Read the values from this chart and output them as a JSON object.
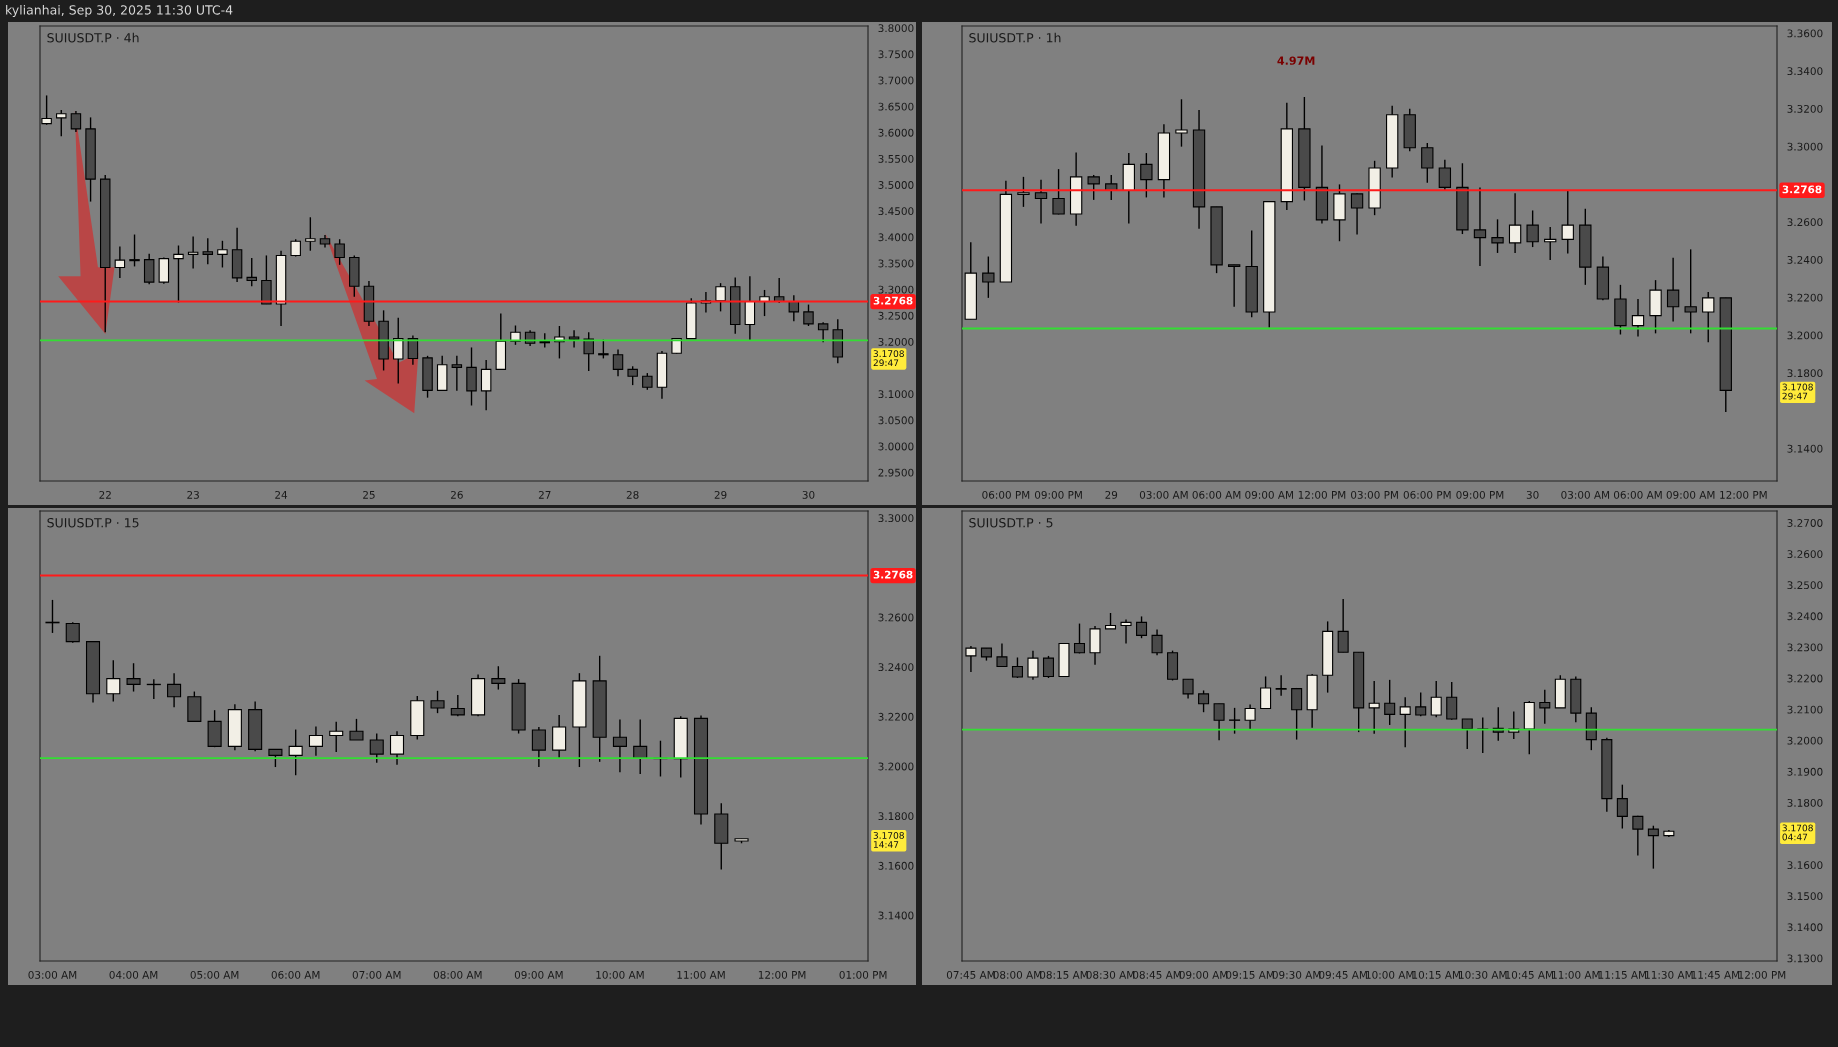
{
  "chart_data": [
    {
      "type": "candlestick",
      "title": "SUIUSDT.P · 4h",
      "subtitle": "kylianhai, Sep 30, 2025 11:30 UTC-4",
      "x": [
        21.3333,
        21.5,
        21.6667,
        21.8333,
        22,
        22.1667,
        22.3333,
        22.5,
        22.6667,
        22.8333,
        23,
        23.1667,
        23.3333,
        23.5,
        23.6667,
        23.8333,
        24,
        24.1667,
        24.3333,
        24.5,
        24.6667,
        24.8333,
        25,
        25.1667,
        25.3333,
        25.5,
        25.6667,
        25.8333,
        26,
        26.1667,
        26.3333,
        26.5,
        26.6667,
        26.8333,
        27,
        27.1667,
        27.3333,
        27.5,
        27.6667,
        27.8333,
        28,
        28.1667,
        28.3333,
        28.5,
        28.6667,
        28.8333,
        29,
        29.1667,
        29.3333,
        29.5,
        29.6667,
        29.8333,
        30,
        30.1667,
        30.3333
      ],
      "ohlc": [
        [
          3.617,
          3.671,
          3.615,
          3.627
        ],
        [
          3.628,
          3.643,
          3.593,
          3.636
        ],
        [
          3.636,
          3.641,
          3.601,
          3.607
        ],
        [
          3.607,
          3.629,
          3.468,
          3.511
        ],
        [
          3.511,
          3.519,
          3.218,
          3.342
        ],
        [
          3.342,
          3.382,
          3.322,
          3.356
        ],
        [
          3.355,
          3.405,
          3.344,
          3.357
        ],
        [
          3.357,
          3.368,
          3.31,
          3.314
        ],
        [
          3.314,
          3.361,
          3.311,
          3.359
        ],
        [
          3.359,
          3.384,
          3.275,
          3.367
        ],
        [
          3.367,
          3.401,
          3.34,
          3.371
        ],
        [
          3.372,
          3.398,
          3.348,
          3.367
        ],
        [
          3.367,
          3.393,
          3.342,
          3.376
        ],
        [
          3.376,
          3.418,
          3.314,
          3.322
        ],
        [
          3.323,
          3.36,
          3.306,
          3.317
        ],
        [
          3.317,
          3.365,
          3.272,
          3.272
        ],
        [
          3.272,
          3.374,
          3.23,
          3.365
        ],
        [
          3.365,
          3.396,
          3.363,
          3.392
        ],
        [
          3.392,
          3.438,
          3.374,
          3.397
        ],
        [
          3.397,
          3.404,
          3.38,
          3.387
        ],
        [
          3.387,
          3.396,
          3.347,
          3.361
        ],
        [
          3.361,
          3.365,
          3.286,
          3.306
        ],
        [
          3.306,
          3.316,
          3.23,
          3.239
        ],
        [
          3.239,
          3.26,
          3.145,
          3.167
        ],
        [
          3.167,
          3.246,
          3.12,
          3.206
        ],
        [
          3.206,
          3.212,
          3.156,
          3.168
        ],
        [
          3.169,
          3.173,
          3.093,
          3.107
        ],
        [
          3.107,
          3.173,
          3.106,
          3.156
        ],
        [
          3.156,
          3.173,
          3.106,
          3.151
        ],
        [
          3.151,
          3.189,
          3.078,
          3.106
        ],
        [
          3.106,
          3.165,
          3.069,
          3.147
        ],
        [
          3.147,
          3.254,
          3.147,
          3.201
        ],
        [
          3.201,
          3.231,
          3.194,
          3.218
        ],
        [
          3.218,
          3.222,
          3.192,
          3.197
        ],
        [
          3.2,
          3.216,
          3.189,
          3.198
        ],
        [
          3.2,
          3.23,
          3.168,
          3.209
        ],
        [
          3.209,
          3.222,
          3.189,
          3.205
        ],
        [
          3.205,
          3.218,
          3.144,
          3.177
        ],
        [
          3.177,
          3.204,
          3.168,
          3.175
        ],
        [
          3.175,
          3.185,
          3.134,
          3.147
        ],
        [
          3.147,
          3.153,
          3.117,
          3.134
        ],
        [
          3.134,
          3.14,
          3.108,
          3.113
        ],
        [
          3.113,
          3.182,
          3.091,
          3.178
        ],
        [
          3.178,
          3.207,
          3.177,
          3.206
        ],
        [
          3.206,
          3.283,
          3.205,
          3.274
        ],
        [
          3.274,
          3.295,
          3.256,
          3.278
        ],
        [
          3.278,
          3.312,
          3.258,
          3.305
        ],
        [
          3.305,
          3.323,
          3.215,
          3.233
        ],
        [
          3.233,
          3.325,
          3.203,
          3.277
        ],
        [
          3.277,
          3.299,
          3.249,
          3.286
        ],
        [
          3.286,
          3.322,
          3.274,
          3.277
        ],
        [
          3.277,
          3.289,
          3.239,
          3.257
        ],
        [
          3.257,
          3.271,
          3.23,
          3.234
        ],
        [
          3.234,
          3.237,
          3.199,
          3.223
        ],
        [
          3.223,
          3.243,
          3.159,
          3.1708
        ]
      ],
      "xlim": [
        21.258,
        30.677
      ],
      "xticks": [
        22,
        23,
        24,
        25,
        26,
        27,
        28,
        29,
        30
      ],
      "ylim": [
        2.9336,
        3.8038
      ],
      "yticks": [
        {
          "value": 2.95,
          "label": "2.9500"
        },
        {
          "value": 3.0,
          "label": "3.0000"
        },
        {
          "value": 3.05,
          "label": "3.0500"
        },
        {
          "value": 3.1,
          "label": "3.1000"
        },
        {
          "value": 3.2,
          "label": "3.2000"
        },
        {
          "value": 3.25,
          "label": "3.2500"
        },
        {
          "value": 3.3,
          "label": "3.3000"
        },
        {
          "value": 3.35,
          "label": "3.3500"
        },
        {
          "value": 3.4,
          "label": "3.4000"
        },
        {
          "value": 3.45,
          "label": "3.4500"
        },
        {
          "value": 3.5,
          "label": "3.5000"
        },
        {
          "value": 3.55,
          "label": "3.5500"
        },
        {
          "value": 3.6,
          "label": "3.6000"
        },
        {
          "value": 3.65,
          "label": "3.6500"
        },
        {
          "value": 3.7,
          "label": "3.7000"
        },
        {
          "value": 3.75,
          "label": "3.7500"
        },
        {
          "value": 3.8,
          "label": "3.8000"
        }
      ],
      "ref_lines": [
        {
          "axis": "y",
          "value": 3.2768,
          "label": "3.2768",
          "color": "#ff1a1a"
        },
        {
          "axis": "y",
          "value": 3.2026,
          "color": "#33dd33"
        }
      ],
      "annotations": [
        "3.1708\n29:47"
      ]
    },
    {
      "type": "candlestick",
      "title": "SUIUSDT.P · 1h",
      "x": [
        "2025-09-28T16:00",
        "2025-09-28T17:00",
        "2025-09-28T18:00",
        "2025-09-28T19:00",
        "2025-09-28T20:00",
        "2025-09-28T21:00",
        "2025-09-28T22:00",
        "2025-09-28T23:00",
        "2025-09-29T00:00",
        "2025-09-29T01:00",
        "2025-09-29T02:00",
        "2025-09-29T03:00",
        "2025-09-29T04:00",
        "2025-09-29T05:00",
        "2025-09-29T06:00",
        "2025-09-29T07:00",
        "2025-09-29T08:00",
        "2025-09-29T09:00",
        "2025-09-29T10:00",
        "2025-09-29T11:00",
        "2025-09-29T12:00",
        "2025-09-29T13:00",
        "2025-09-29T14:00",
        "2025-09-29T15:00",
        "2025-09-29T16:00",
        "2025-09-29T17:00",
        "2025-09-29T18:00",
        "2025-09-29T19:00",
        "2025-09-29T20:00",
        "2025-09-29T21:00",
        "2025-09-29T22:00",
        "2025-09-29T23:00",
        "2025-09-30T00:00",
        "2025-09-30T01:00",
        "2025-09-30T02:00",
        "2025-09-30T03:00",
        "2025-09-30T04:00",
        "2025-09-30T05:00",
        "2025-09-30T06:00",
        "2025-09-30T07:00",
        "2025-09-30T08:00",
        "2025-09-30T09:00",
        "2025-09-30T10:00",
        "2025-09-30T11:00"
      ],
      "ohlc": [
        [
          3.2085,
          3.2492,
          3.2085,
          3.2329
        ],
        [
          3.2329,
          3.2417,
          3.2198,
          3.2282
        ],
        [
          3.2282,
          3.2818,
          3.2282,
          3.2746
        ],
        [
          3.2746,
          3.2839,
          3.268,
          3.2755
        ],
        [
          3.2755,
          3.2824,
          3.2592,
          3.2724
        ],
        [
          3.2724,
          3.288,
          3.264,
          3.2642
        ],
        [
          3.2642,
          3.2968,
          3.258,
          3.2839
        ],
        [
          3.2839,
          3.2849,
          3.2717,
          3.2802
        ],
        [
          3.2802,
          3.2849,
          3.2717,
          3.2767
        ],
        [
          3.2767,
          3.2965,
          3.2592,
          3.2905
        ],
        [
          3.2905,
          3.2965,
          3.273,
          3.2824
        ],
        [
          3.2824,
          3.3118,
          3.273,
          3.3071
        ],
        [
          3.3071,
          3.325,
          3.2999,
          3.3087
        ],
        [
          3.3087,
          3.3193,
          3.2564,
          3.268
        ],
        [
          3.268,
          3.268,
          3.2329,
          3.2373
        ],
        [
          3.2373,
          3.2373,
          3.2151,
          3.2364
        ],
        [
          3.2364,
          3.2555,
          3.2095,
          3.2123
        ],
        [
          3.2123,
          3.2708,
          3.2041,
          3.2708
        ],
        [
          3.2708,
          3.3231,
          3.2664,
          3.3093
        ],
        [
          3.3093,
          3.3262,
          3.2714,
          3.2783
        ],
        [
          3.2783,
          3.3005,
          3.2592,
          3.2611
        ],
        [
          3.2611,
          3.2799,
          3.2498,
          3.2749
        ],
        [
          3.2749,
          3.2752,
          3.2533,
          3.2674
        ],
        [
          3.2674,
          3.2924,
          3.2636,
          3.2886
        ],
        [
          3.2886,
          3.3215,
          3.2836,
          3.3168
        ],
        [
          3.3168,
          3.32,
          3.2974,
          3.2993
        ],
        [
          3.2993,
          3.3018,
          3.2808,
          3.2886
        ],
        [
          3.2886,
          3.293,
          3.2767,
          3.2783
        ],
        [
          3.2783,
          3.2911,
          3.2536,
          3.2558
        ],
        [
          3.2558,
          3.2783,
          3.2367,
          3.2517
        ],
        [
          3.2517,
          3.2614,
          3.2436,
          3.2489
        ],
        [
          3.2489,
          3.2752,
          3.2436,
          3.2583
        ],
        [
          3.2583,
          3.2661,
          3.2467,
          3.2495
        ],
        [
          3.2495,
          3.2573,
          3.2398,
          3.2508
        ],
        [
          3.2508,
          3.2767,
          3.2433,
          3.2583
        ],
        [
          3.2583,
          3.267,
          3.2267,
          3.2361
        ],
        [
          3.2361,
          3.2417,
          3.2185,
          3.2192
        ],
        [
          3.2192,
          3.2267,
          3.2004,
          3.2051
        ],
        [
          3.2051,
          3.2192,
          3.1994,
          3.2104
        ],
        [
          3.2104,
          3.2292,
          3.201,
          3.2239
        ],
        [
          3.2239,
          3.2411,
          3.2073,
          3.2151
        ],
        [
          3.2151,
          3.2455,
          3.201,
          3.2123
        ],
        [
          3.2123,
          3.2229,
          3.1963,
          3.2198
        ],
        [
          3.2198,
          3.2198,
          3.1594,
          3.1708
        ]
      ],
      "xlim": [
        "2025-09-28T15:30",
        "2025-09-30T13:55"
      ],
      "xticks": [
        {
          "value": "2025-09-28T18:00",
          "label": "06:00 PM"
        },
        {
          "value": "2025-09-28T21:00",
          "label": "09:00 PM"
        },
        {
          "value": "2025-09-29",
          "label": "29"
        },
        {
          "value": "2025-09-29T03:00",
          "label": "03:00 AM"
        },
        {
          "value": "2025-09-29T06:00",
          "label": "06:00 AM"
        },
        {
          "value": "2025-09-29T09:00",
          "label": "09:00 AM"
        },
        {
          "value": "2025-09-29T12:00",
          "label": "12:00 PM"
        },
        {
          "value": "2025-09-29T15:00",
          "label": "03:00 PM"
        },
        {
          "value": "2025-09-29T18:00",
          "label": "06:00 PM"
        },
        {
          "value": "2025-09-29T21:00",
          "label": "09:00 PM"
        },
        {
          "value": "2025-09-30",
          "label": "30"
        },
        {
          "value": "2025-09-30T03:00",
          "label": "03:00 AM"
        },
        {
          "value": "2025-09-30T06:00",
          "label": "06:00 AM"
        },
        {
          "value": "2025-09-30T09:00",
          "label": "09:00 AM"
        },
        {
          "value": "2025-09-30T12:00",
          "label": "12:00 PM"
        }
      ],
      "ylim": [
        3.1228,
        3.3638
      ],
      "yticks": [
        {
          "value": 3.14,
          "label": "3.1400"
        },
        {
          "value": 3.18,
          "label": "3.1800"
        },
        {
          "value": 3.2,
          "label": "3.2000"
        },
        {
          "value": 3.22,
          "label": "3.2200"
        },
        {
          "value": 3.24,
          "label": "3.2400"
        },
        {
          "value": 3.26,
          "label": "3.2600"
        },
        {
          "value": 3.3,
          "label": "3.3000"
        },
        {
          "value": 3.32,
          "label": "3.3200"
        },
        {
          "value": 3.34,
          "label": "3.3400"
        },
        {
          "value": 3.36,
          "label": "3.3600"
        }
      ],
      "ref_lines": [
        {
          "axis": "y",
          "value": 3.2768,
          "label": "3.2768",
          "color": "#ff1a1a"
        },
        {
          "axis": "y",
          "value": 3.2036,
          "color": "#33dd33"
        }
      ],
      "annotations": [
        "4.97M",
        "3.1708\n29:47"
      ]
    },
    {
      "type": "candlestick",
      "title": "SUIUSDT.P · 15",
      "x": [
        3,
        3.25,
        3.5,
        3.75,
        4,
        4.25,
        4.5,
        4.75,
        5,
        5.25,
        5.5,
        5.75,
        6,
        6.25,
        6.5,
        6.75,
        7,
        7.25,
        7.5,
        7.75,
        8,
        8.25,
        8.5,
        8.75,
        9,
        9.25,
        9.5,
        9.75,
        10,
        10.25,
        10.5,
        10.75,
        11,
        11.25,
        11.5
      ],
      "ohlc": [
        [
          3.258,
          3.267,
          3.2537,
          3.2578
        ],
        [
          3.2575,
          3.258,
          3.2497,
          3.2502
        ],
        [
          3.2502,
          3.2502,
          3.2257,
          3.2292
        ],
        [
          3.2292,
          3.2427,
          3.2261,
          3.2353
        ],
        [
          3.2353,
          3.2415,
          3.2301,
          3.233
        ],
        [
          3.233,
          3.2351,
          3.2271,
          3.2329
        ],
        [
          3.233,
          3.2375,
          3.2238,
          3.228
        ],
        [
          3.228,
          3.2301,
          3.2179,
          3.2181
        ],
        [
          3.2181,
          3.2226,
          3.2077,
          3.208
        ],
        [
          3.208,
          3.225,
          3.2065,
          3.2228
        ],
        [
          3.2228,
          3.2261,
          3.2061,
          3.2068
        ],
        [
          3.2068,
          3.2068,
          3.1997,
          3.2044
        ],
        [
          3.2044,
          3.2148,
          3.1964,
          3.208
        ],
        [
          3.208,
          3.216,
          3.2042,
          3.2124
        ],
        [
          3.2124,
          3.2179,
          3.2058,
          3.2141
        ],
        [
          3.2141,
          3.2191,
          3.2106,
          3.2106
        ],
        [
          3.2106,
          3.2132,
          3.2014,
          3.2049
        ],
        [
          3.2049,
          3.2141,
          3.2006,
          3.2124
        ],
        [
          3.2124,
          3.2283,
          3.2108,
          3.2264
        ],
        [
          3.2264,
          3.2304,
          3.2214,
          3.2235
        ],
        [
          3.2233,
          3.2287,
          3.2202,
          3.2207
        ],
        [
          3.2207,
          3.237,
          3.2202,
          3.2353
        ],
        [
          3.2353,
          3.2403,
          3.2309,
          3.2334
        ],
        [
          3.2334,
          3.2351,
          3.2132,
          3.2146
        ],
        [
          3.2146,
          3.2158,
          3.1997,
          3.2065
        ],
        [
          3.2065,
          3.2207,
          3.203,
          3.2158
        ],
        [
          3.2158,
          3.2375,
          3.1997,
          3.2344
        ],
        [
          3.2344,
          3.2445,
          3.2018,
          3.2117
        ],
        [
          3.2117,
          3.2188,
          3.1976,
          3.208
        ],
        [
          3.208,
          3.2188,
          3.1969,
          3.2032
        ],
        [
          3.2032,
          3.2103,
          3.1959,
          3.2031
        ],
        [
          3.2031,
          3.2202,
          3.1955,
          3.2193
        ],
        [
          3.2193,
          3.2205,
          3.1766,
          3.1808
        ],
        [
          3.1808,
          3.1851,
          3.1584,
          3.169
        ],
        [
          3.1699,
          3.1708,
          3.169,
          3.1708
        ]
      ],
      "xlim": [
        2.846,
        13.06
      ],
      "xticks": [
        {
          "value": 3,
          "label": "03:00 AM"
        },
        {
          "value": 4,
          "label": "04:00 AM"
        },
        {
          "value": 5,
          "label": "05:00 AM"
        },
        {
          "value": 6,
          "label": "06:00 AM"
        },
        {
          "value": 7,
          "label": "07:00 AM"
        },
        {
          "value": 8,
          "label": "08:00 AM"
        },
        {
          "value": 9,
          "label": "09:00 AM"
        },
        {
          "value": 10,
          "label": "10:00 AM"
        },
        {
          "value": 11,
          "label": "11:00 AM"
        },
        {
          "value": 12,
          "label": "12:00 PM"
        },
        {
          "value": 13,
          "label": "01:00 PM"
        }
      ],
      "ylim": [
        3.1216,
        3.3028
      ],
      "yticks": [
        {
          "value": 3.14,
          "label": "3.1400"
        },
        {
          "value": 3.16,
          "label": "3.1600"
        },
        {
          "value": 3.18,
          "label": "3.1800"
        },
        {
          "value": 3.2,
          "label": "3.2000"
        },
        {
          "value": 3.22,
          "label": "3.2200"
        },
        {
          "value": 3.24,
          "label": "3.2400"
        },
        {
          "value": 3.26,
          "label": "3.2600"
        },
        {
          "value": 3.3,
          "label": "3.3000"
        }
      ],
      "ref_lines": [
        {
          "axis": "y",
          "value": 3.2768,
          "label": "3.2768",
          "color": "#ff1a1a"
        },
        {
          "axis": "y",
          "value": 3.2033,
          "color": "#33dd33"
        }
      ],
      "annotations": [
        "3.1708\n14:47"
      ]
    },
    {
      "type": "candlestick",
      "title": "SUIUSDT.P · 5",
      "x": [
        7.75,
        7.8333,
        7.9167,
        8,
        8.0833,
        8.1667,
        8.25,
        8.3333,
        8.4167,
        8.5,
        8.5833,
        8.6667,
        8.75,
        8.8333,
        8.9167,
        9,
        9.0833,
        9.1667,
        9.25,
        9.3333,
        9.4167,
        9.5,
        9.5833,
        9.6667,
        9.75,
        9.8333,
        9.9167,
        10,
        10.0833,
        10.1667,
        10.25,
        10.3333,
        10.4167,
        10.5,
        10.5833,
        10.6667,
        10.75,
        10.8333,
        10.9167,
        11,
        11.0833,
        11.1667,
        11.25,
        11.3333,
        11.4167,
        11.5
      ],
      "ohlc": [
        [
          3.2272,
          3.2304,
          3.222,
          3.2297
        ],
        [
          3.2297,
          3.2297,
          3.2257,
          3.2269
        ],
        [
          3.2269,
          3.2312,
          3.2238,
          3.2238
        ],
        [
          3.2238,
          3.2267,
          3.2201,
          3.2204
        ],
        [
          3.2204,
          3.2289,
          3.2195,
          3.2265
        ],
        [
          3.2265,
          3.2272,
          3.2201,
          3.2206
        ],
        [
          3.2206,
          3.2312,
          3.2206,
          3.2312
        ],
        [
          3.2312,
          3.2376,
          3.228,
          3.2282
        ],
        [
          3.2282,
          3.2368,
          3.2244,
          3.2359
        ],
        [
          3.2359,
          3.241,
          3.2359,
          3.237
        ],
        [
          3.237,
          3.2389,
          3.2312,
          3.238
        ],
        [
          3.238,
          3.2399,
          3.2329,
          3.2338
        ],
        [
          3.2338,
          3.2357,
          3.2274,
          3.2282
        ],
        [
          3.2282,
          3.2289,
          3.2193,
          3.2197
        ],
        [
          3.2197,
          3.2197,
          3.2135,
          3.215
        ],
        [
          3.215,
          3.2161,
          3.2091,
          3.2118
        ],
        [
          3.2118,
          3.2118,
          3.2001,
          3.2065
        ],
        [
          3.2066,
          3.2105,
          3.2022,
          3.2065
        ],
        [
          3.2065,
          3.2116,
          3.2035,
          3.2103
        ],
        [
          3.2103,
          3.2206,
          3.2103,
          3.2169
        ],
        [
          3.2165,
          3.221,
          3.2144,
          3.2167
        ],
        [
          3.2167,
          3.2169,
          3.2003,
          3.2099
        ],
        [
          3.2099,
          3.2214,
          3.2041,
          3.221
        ],
        [
          3.221,
          3.2383,
          3.2154,
          3.2351
        ],
        [
          3.2351,
          3.2455,
          3.2284,
          3.2284
        ],
        [
          3.2284,
          3.2284,
          3.2027,
          3.2105
        ],
        [
          3.2105,
          3.2191,
          3.2022,
          3.212
        ],
        [
          3.212,
          3.2195,
          3.205,
          3.2084
        ],
        [
          3.2084,
          3.2139,
          3.1978,
          3.2108
        ],
        [
          3.2108,
          3.2154,
          3.2078,
          3.2082
        ],
        [
          3.2082,
          3.2191,
          3.2075,
          3.2139
        ],
        [
          3.2139,
          3.2188,
          3.2067,
          3.2069
        ],
        [
          3.2069,
          3.2069,
          3.1973,
          3.2037
        ],
        [
          3.2037,
          3.2074,
          3.196,
          3.2036
        ],
        [
          3.2039,
          3.2107,
          3.1999,
          3.2027
        ],
        [
          3.2027,
          3.2093,
          3.2005,
          3.2037
        ],
        [
          3.2037,
          3.2127,
          3.1956,
          3.2122
        ],
        [
          3.2122,
          3.2163,
          3.2054,
          3.2105
        ],
        [
          3.2105,
          3.221,
          3.2105,
          3.2197
        ],
        [
          3.2197,
          3.2206,
          3.2059,
          3.2088
        ],
        [
          3.2088,
          3.2107,
          3.1969,
          3.2003
        ],
        [
          3.2003,
          3.2009,
          3.1771,
          3.1813
        ],
        [
          3.1813,
          3.1858,
          3.1717,
          3.1756
        ],
        [
          3.1756,
          3.1758,
          3.163,
          3.1715
        ],
        [
          3.1715,
          3.1726,
          3.1588,
          3.1694
        ],
        [
          3.1694,
          3.1712,
          3.169,
          3.1708
        ]
      ],
      "xlim": [
        7.702,
        12.081
      ],
      "xticks": [
        {
          "value": 7.75,
          "label": "07:45 AM"
        },
        {
          "value": 8,
          "label": "08:00 AM"
        },
        {
          "value": 8.25,
          "label": "08:15 AM"
        },
        {
          "value": 8.5,
          "label": "08:30 AM"
        },
        {
          "value": 8.75,
          "label": "08:45 AM"
        },
        {
          "value": 9,
          "label": "09:00 AM"
        },
        {
          "value": 9.25,
          "label": "09:15 AM"
        },
        {
          "value": 9.5,
          "label": "09:30 AM"
        },
        {
          "value": 9.75,
          "label": "09:45 AM"
        },
        {
          "value": 10,
          "label": "10:00 AM"
        },
        {
          "value": 10.25,
          "label": "10:15 AM"
        },
        {
          "value": 10.5,
          "label": "10:30 AM"
        },
        {
          "value": 10.75,
          "label": "10:45 AM"
        },
        {
          "value": 11,
          "label": "11:00 AM"
        },
        {
          "value": 11.25,
          "label": "11:15 AM"
        },
        {
          "value": 11.5,
          "label": "11:30 AM"
        },
        {
          "value": 11.75,
          "label": "11:45 AM"
        },
        {
          "value": 12,
          "label": "12:00 PM"
        }
      ],
      "ylim": [
        3.1291,
        3.2738
      ],
      "yticks": [
        {
          "value": 3.13,
          "label": "3.1300"
        },
        {
          "value": 3.14,
          "label": "3.1400"
        },
        {
          "value": 3.15,
          "label": "3.1500"
        },
        {
          "value": 3.16,
          "label": "3.1600"
        },
        {
          "value": 3.18,
          "label": "3.1800"
        },
        {
          "value": 3.19,
          "label": "3.1900"
        },
        {
          "value": 3.2,
          "label": "3.2000"
        },
        {
          "value": 3.21,
          "label": "3.2100"
        },
        {
          "value": 3.22,
          "label": "3.2200"
        },
        {
          "value": 3.23,
          "label": "3.2300"
        },
        {
          "value": 3.24,
          "label": "3.2400"
        },
        {
          "value": 3.25,
          "label": "3.2500"
        },
        {
          "value": 3.26,
          "label": "3.2600"
        },
        {
          "value": 3.27,
          "label": "3.2700"
        }
      ],
      "ref_lines": [
        {
          "axis": "y",
          "value": 3.2035,
          "color": "#33dd33"
        }
      ],
      "annotations": [
        "3.1708\n04:47"
      ]
    }
  ]
}
